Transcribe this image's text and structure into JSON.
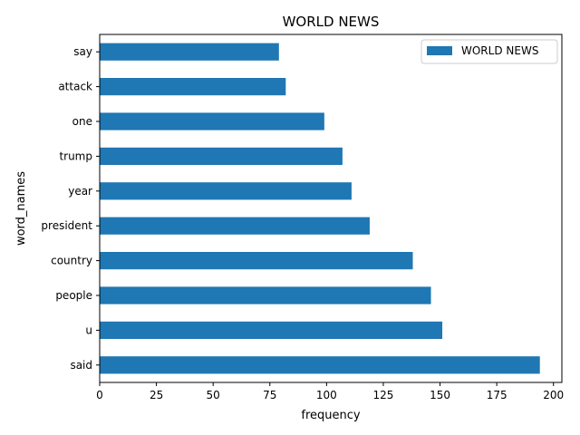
{
  "chart_data": {
    "type": "bar",
    "orientation": "horizontal",
    "title": "WORLD NEWS",
    "xlabel": "frequency",
    "ylabel": "word_names",
    "categories": [
      "said",
      "u",
      "people",
      "country",
      "president",
      "year",
      "trump",
      "one",
      "attack",
      "say"
    ],
    "series": [
      {
        "name": "WORLD NEWS",
        "values": [
          194,
          151,
          146,
          138,
          119,
          111,
          107,
          99,
          82,
          79
        ],
        "color": "#1f77b4"
      }
    ],
    "xlim": [
      0,
      203.7
    ],
    "xticks": [
      0,
      25,
      50,
      75,
      100,
      125,
      150,
      175,
      200
    ],
    "grid": false,
    "legend_position": "top-right"
  }
}
